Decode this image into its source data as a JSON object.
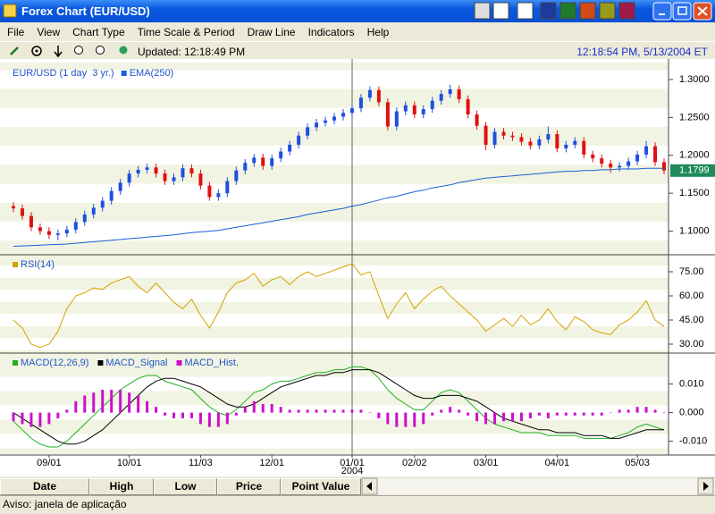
{
  "window": {
    "title": "Forex Chart (EUR/USD)"
  },
  "menu": [
    "File",
    "View",
    "Chart Type",
    "Time Scale & Period",
    "Draw Line",
    "Indicators",
    "Help"
  ],
  "toolbar": {
    "updated": "Updated: 12:18:49 PM",
    "clock": "12:18:54 PM, 5/13/2004 ET"
  },
  "chart_data": [
    {
      "type": "candlestick",
      "title": "EUR/USD (1 day  3 yr.)",
      "up_color": "#1f4fe0",
      "down_color": "#e01010",
      "open": [
        1.133,
        1.13,
        1.12,
        1.105,
        1.1,
        1.095,
        1.097,
        1.102,
        1.112,
        1.122,
        1.131,
        1.14,
        1.153,
        1.164,
        1.176,
        1.181,
        1.184,
        1.176,
        1.166,
        1.171,
        1.183,
        1.176,
        1.16,
        1.145,
        1.15,
        1.166,
        1.18,
        1.19,
        1.197,
        1.186,
        1.196,
        1.205,
        1.214,
        1.226,
        1.237,
        1.243,
        1.246,
        1.251,
        1.256,
        1.262,
        1.276,
        1.286,
        1.27,
        1.238,
        1.258,
        1.266,
        1.254,
        1.261,
        1.272,
        1.281,
        1.287,
        1.274,
        1.254,
        1.239,
        1.214,
        1.231,
        1.226,
        1.224,
        1.218,
        1.213,
        1.221,
        1.228,
        1.209,
        1.214,
        1.219,
        1.201,
        1.196,
        1.189,
        1.184,
        1.186,
        1.192,
        1.201,
        1.212,
        1.191
      ],
      "high": [
        1.138,
        1.135,
        1.125,
        1.11,
        1.105,
        1.102,
        1.107,
        1.117,
        1.127,
        1.136,
        1.145,
        1.158,
        1.169,
        1.181,
        1.186,
        1.189,
        1.189,
        1.181,
        1.176,
        1.188,
        1.188,
        1.181,
        1.165,
        1.155,
        1.171,
        1.185,
        1.195,
        1.202,
        1.202,
        1.201,
        1.21,
        1.219,
        1.231,
        1.242,
        1.248,
        1.251,
        1.256,
        1.261,
        1.267,
        1.281,
        1.291,
        1.291,
        1.275,
        1.263,
        1.271,
        1.271,
        1.266,
        1.277,
        1.286,
        1.293,
        1.292,
        1.279,
        1.259,
        1.244,
        1.236,
        1.236,
        1.231,
        1.229,
        1.223,
        1.226,
        1.238,
        1.233,
        1.219,
        1.224,
        1.224,
        1.206,
        1.201,
        1.194,
        1.191,
        1.197,
        1.206,
        1.219,
        1.217,
        1.196
      ],
      "low": [
        1.125,
        1.115,
        1.1,
        1.095,
        1.09,
        1.088,
        1.092,
        1.097,
        1.107,
        1.117,
        1.126,
        1.135,
        1.148,
        1.159,
        1.171,
        1.176,
        1.171,
        1.161,
        1.161,
        1.166,
        1.171,
        1.155,
        1.14,
        1.14,
        1.145,
        1.161,
        1.175,
        1.185,
        1.181,
        1.181,
        1.191,
        1.2,
        1.209,
        1.221,
        1.232,
        1.238,
        1.241,
        1.246,
        1.251,
        1.257,
        1.271,
        1.265,
        1.233,
        1.233,
        1.253,
        1.249,
        1.249,
        1.256,
        1.267,
        1.276,
        1.269,
        1.249,
        1.234,
        1.207,
        1.209,
        1.221,
        1.219,
        1.213,
        1.208,
        1.208,
        1.216,
        1.204,
        1.204,
        1.209,
        1.196,
        1.191,
        1.184,
        1.177,
        1.179,
        1.181,
        1.187,
        1.196,
        1.186,
        1.175
      ],
      "close": [
        1.13,
        1.12,
        1.105,
        1.1,
        1.095,
        1.097,
        1.102,
        1.112,
        1.122,
        1.131,
        1.14,
        1.153,
        1.164,
        1.176,
        1.181,
        1.184,
        1.176,
        1.166,
        1.171,
        1.183,
        1.176,
        1.16,
        1.145,
        1.15,
        1.166,
        1.18,
        1.19,
        1.197,
        1.186,
        1.196,
        1.205,
        1.214,
        1.226,
        1.237,
        1.243,
        1.246,
        1.251,
        1.256,
        1.262,
        1.276,
        1.286,
        1.27,
        1.238,
        1.258,
        1.266,
        1.254,
        1.261,
        1.272,
        1.281,
        1.287,
        1.274,
        1.254,
        1.239,
        1.214,
        1.231,
        1.226,
        1.224,
        1.218,
        1.213,
        1.221,
        1.228,
        1.209,
        1.214,
        1.219,
        1.201,
        1.196,
        1.189,
        1.184,
        1.186,
        1.192,
        1.201,
        1.212,
        1.191,
        1.18
      ],
      "series": [
        {
          "name": "EMA(250)",
          "color": "#1a5fd8",
          "values": [
            1.08,
            1.0805,
            1.081,
            1.0815,
            1.082,
            1.0825,
            1.083,
            1.084,
            1.085,
            1.086,
            1.087,
            1.088,
            1.089,
            1.09,
            1.091,
            1.092,
            1.093,
            1.094,
            1.095,
            1.0965,
            1.098,
            1.099,
            1.1,
            1.101,
            1.103,
            1.105,
            1.107,
            1.109,
            1.111,
            1.113,
            1.115,
            1.117,
            1.119,
            1.122,
            1.124,
            1.126,
            1.128,
            1.13,
            1.133,
            1.135,
            1.138,
            1.141,
            1.144,
            1.146,
            1.149,
            1.152,
            1.154,
            1.157,
            1.159,
            1.161,
            1.164,
            1.166,
            1.168,
            1.17,
            1.171,
            1.172,
            1.173,
            1.174,
            1.175,
            1.176,
            1.177,
            1.178,
            1.179,
            1.179,
            1.18,
            1.18,
            1.181,
            1.181,
            1.182,
            1.182,
            1.182,
            1.183,
            1.183,
            1.183
          ]
        }
      ],
      "last_value": 1.1799,
      "last_color": "#1f8a5a",
      "ylim": [
        1.07,
        1.32
      ],
      "yticks": [
        {
          "value": 1.1,
          "label": "1.1000"
        },
        {
          "value": 1.15,
          "label": "1.1500"
        },
        {
          "value": 1.2,
          "label": "1.2000"
        },
        {
          "value": 1.25,
          "label": "1.2500"
        },
        {
          "value": 1.3,
          "label": "1.3000"
        }
      ]
    },
    {
      "type": "line",
      "series": [
        {
          "name": "RSI(14)",
          "color": "#d4a300",
          "values": [
            45,
            40,
            30,
            28,
            30,
            38,
            52,
            60,
            62,
            65,
            64,
            68,
            70,
            72,
            66,
            62,
            68,
            62,
            56,
            52,
            58,
            48,
            40,
            50,
            62,
            68,
            70,
            74,
            66,
            70,
            72,
            67,
            72,
            75,
            72,
            74,
            76,
            78,
            80,
            73,
            75,
            60,
            46,
            55,
            62,
            52,
            58,
            63,
            66,
            60,
            55,
            50,
            45,
            38,
            42,
            46,
            41,
            48,
            42,
            45,
            52,
            44,
            39,
            47,
            44,
            39,
            37,
            36,
            42,
            45,
            50,
            57,
            45,
            41
          ]
        }
      ],
      "ylim": [
        25,
        85
      ],
      "yticks": [
        {
          "value": 30,
          "label": "30.00"
        },
        {
          "value": 45,
          "label": "45.00"
        },
        {
          "value": 60,
          "label": "60.00"
        },
        {
          "value": 75,
          "label": "75.00"
        }
      ]
    },
    {
      "type": "line",
      "categories": [
        null,
        null,
        null,
        null,
        "09/01",
        null,
        null,
        null,
        null,
        null,
        null,
        null,
        null,
        "10/01",
        null,
        null,
        null,
        null,
        null,
        null,
        null,
        "11/03",
        null,
        null,
        null,
        null,
        null,
        null,
        null,
        "12/01",
        null,
        null,
        null,
        null,
        null,
        null,
        null,
        null,
        "01/01",
        null,
        null,
        null,
        null,
        null,
        null,
        "02/02",
        null,
        null,
        null,
        null,
        null,
        null,
        null,
        "03/01",
        null,
        null,
        null,
        null,
        null,
        null,
        null,
        "04/01",
        null,
        null,
        null,
        null,
        null,
        null,
        null,
        null,
        "05/03",
        null,
        null,
        null
      ],
      "x_sublabel": "2004",
      "series": [
        {
          "name": "MACD(12,26,9)",
          "color": "#22b022",
          "values": [
            -0.003,
            -0.006,
            -0.009,
            -0.011,
            -0.012,
            -0.012,
            -0.01,
            -0.007,
            -0.004,
            -0.001,
            0.002,
            0.005,
            0.008,
            0.01,
            0.012,
            0.013,
            0.013,
            0.011,
            0.01,
            0.009,
            0.008,
            0.005,
            0.002,
            0.0,
            -0.001,
            0.001,
            0.004,
            0.007,
            0.008,
            0.01,
            0.011,
            0.011,
            0.012,
            0.013,
            0.014,
            0.014,
            0.015,
            0.015,
            0.016,
            0.016,
            0.015,
            0.012,
            0.008,
            0.005,
            0.003,
            0.001,
            0.001,
            0.004,
            0.007,
            0.008,
            0.007,
            0.004,
            0.001,
            -0.002,
            -0.004,
            -0.005,
            -0.006,
            -0.007,
            -0.007,
            -0.007,
            -0.008,
            -0.008,
            -0.008,
            -0.008,
            -0.009,
            -0.009,
            -0.009,
            -0.009,
            -0.008,
            -0.007,
            -0.005,
            -0.004,
            -0.005,
            -0.006
          ]
        },
        {
          "name": "MACD_Signal",
          "color": "#000000",
          "values": [
            0.0,
            -0.002,
            -0.004,
            -0.006,
            -0.008,
            -0.01,
            -0.011,
            -0.011,
            -0.01,
            -0.008,
            -0.006,
            -0.003,
            0.0,
            0.003,
            0.006,
            0.009,
            0.011,
            0.012,
            0.012,
            0.011,
            0.01,
            0.009,
            0.007,
            0.005,
            0.003,
            0.002,
            0.002,
            0.003,
            0.005,
            0.007,
            0.009,
            0.01,
            0.011,
            0.012,
            0.013,
            0.013,
            0.014,
            0.014,
            0.015,
            0.015,
            0.015,
            0.014,
            0.012,
            0.01,
            0.008,
            0.006,
            0.005,
            0.005,
            0.006,
            0.006,
            0.006,
            0.005,
            0.004,
            0.002,
            0.0,
            -0.002,
            -0.003,
            -0.004,
            -0.005,
            -0.006,
            -0.006,
            -0.007,
            -0.007,
            -0.007,
            -0.008,
            -0.008,
            -0.008,
            -0.009,
            -0.009,
            -0.008,
            -0.007,
            -0.006,
            -0.006,
            -0.006
          ]
        },
        {
          "name": "MACD_Hist.",
          "color": "#cc10cc",
          "type": "bar",
          "values": [
            -0.003,
            -0.004,
            -0.005,
            -0.005,
            -0.004,
            -0.002,
            0.001,
            0.004,
            0.006,
            0.007,
            0.008,
            0.008,
            0.008,
            0.007,
            0.006,
            0.004,
            0.002,
            -0.001,
            -0.002,
            -0.002,
            -0.002,
            -0.004,
            -0.005,
            -0.005,
            -0.004,
            -0.001,
            0.002,
            0.004,
            0.003,
            0.003,
            0.002,
            0.001,
            0.001,
            0.001,
            0.001,
            0.001,
            0.001,
            0.001,
            0.001,
            0.001,
            0.0,
            -0.002,
            -0.004,
            -0.005,
            -0.005,
            -0.005,
            -0.004,
            -0.001,
            0.001,
            0.002,
            0.001,
            -0.001,
            -0.003,
            -0.004,
            -0.004,
            -0.003,
            -0.003,
            -0.003,
            -0.002,
            -0.001,
            -0.002,
            -0.001,
            -0.001,
            -0.001,
            -0.001,
            -0.001,
            -0.001,
            0.0,
            0.001,
            0.001,
            0.002,
            0.002,
            0.001,
            0.0
          ]
        }
      ],
      "ylim": [
        -0.0145,
        0.0205
      ],
      "yticks": [
        {
          "value": -0.01,
          "label": "-0.010"
        },
        {
          "value": 0,
          "label": "0.000"
        },
        {
          "value": 0.01,
          "label": "0.010"
        }
      ]
    }
  ],
  "tabs": [
    "Date",
    "High",
    "Low",
    "Price",
    "Point Value"
  ],
  "status": "Aviso: janela de aplicação"
}
